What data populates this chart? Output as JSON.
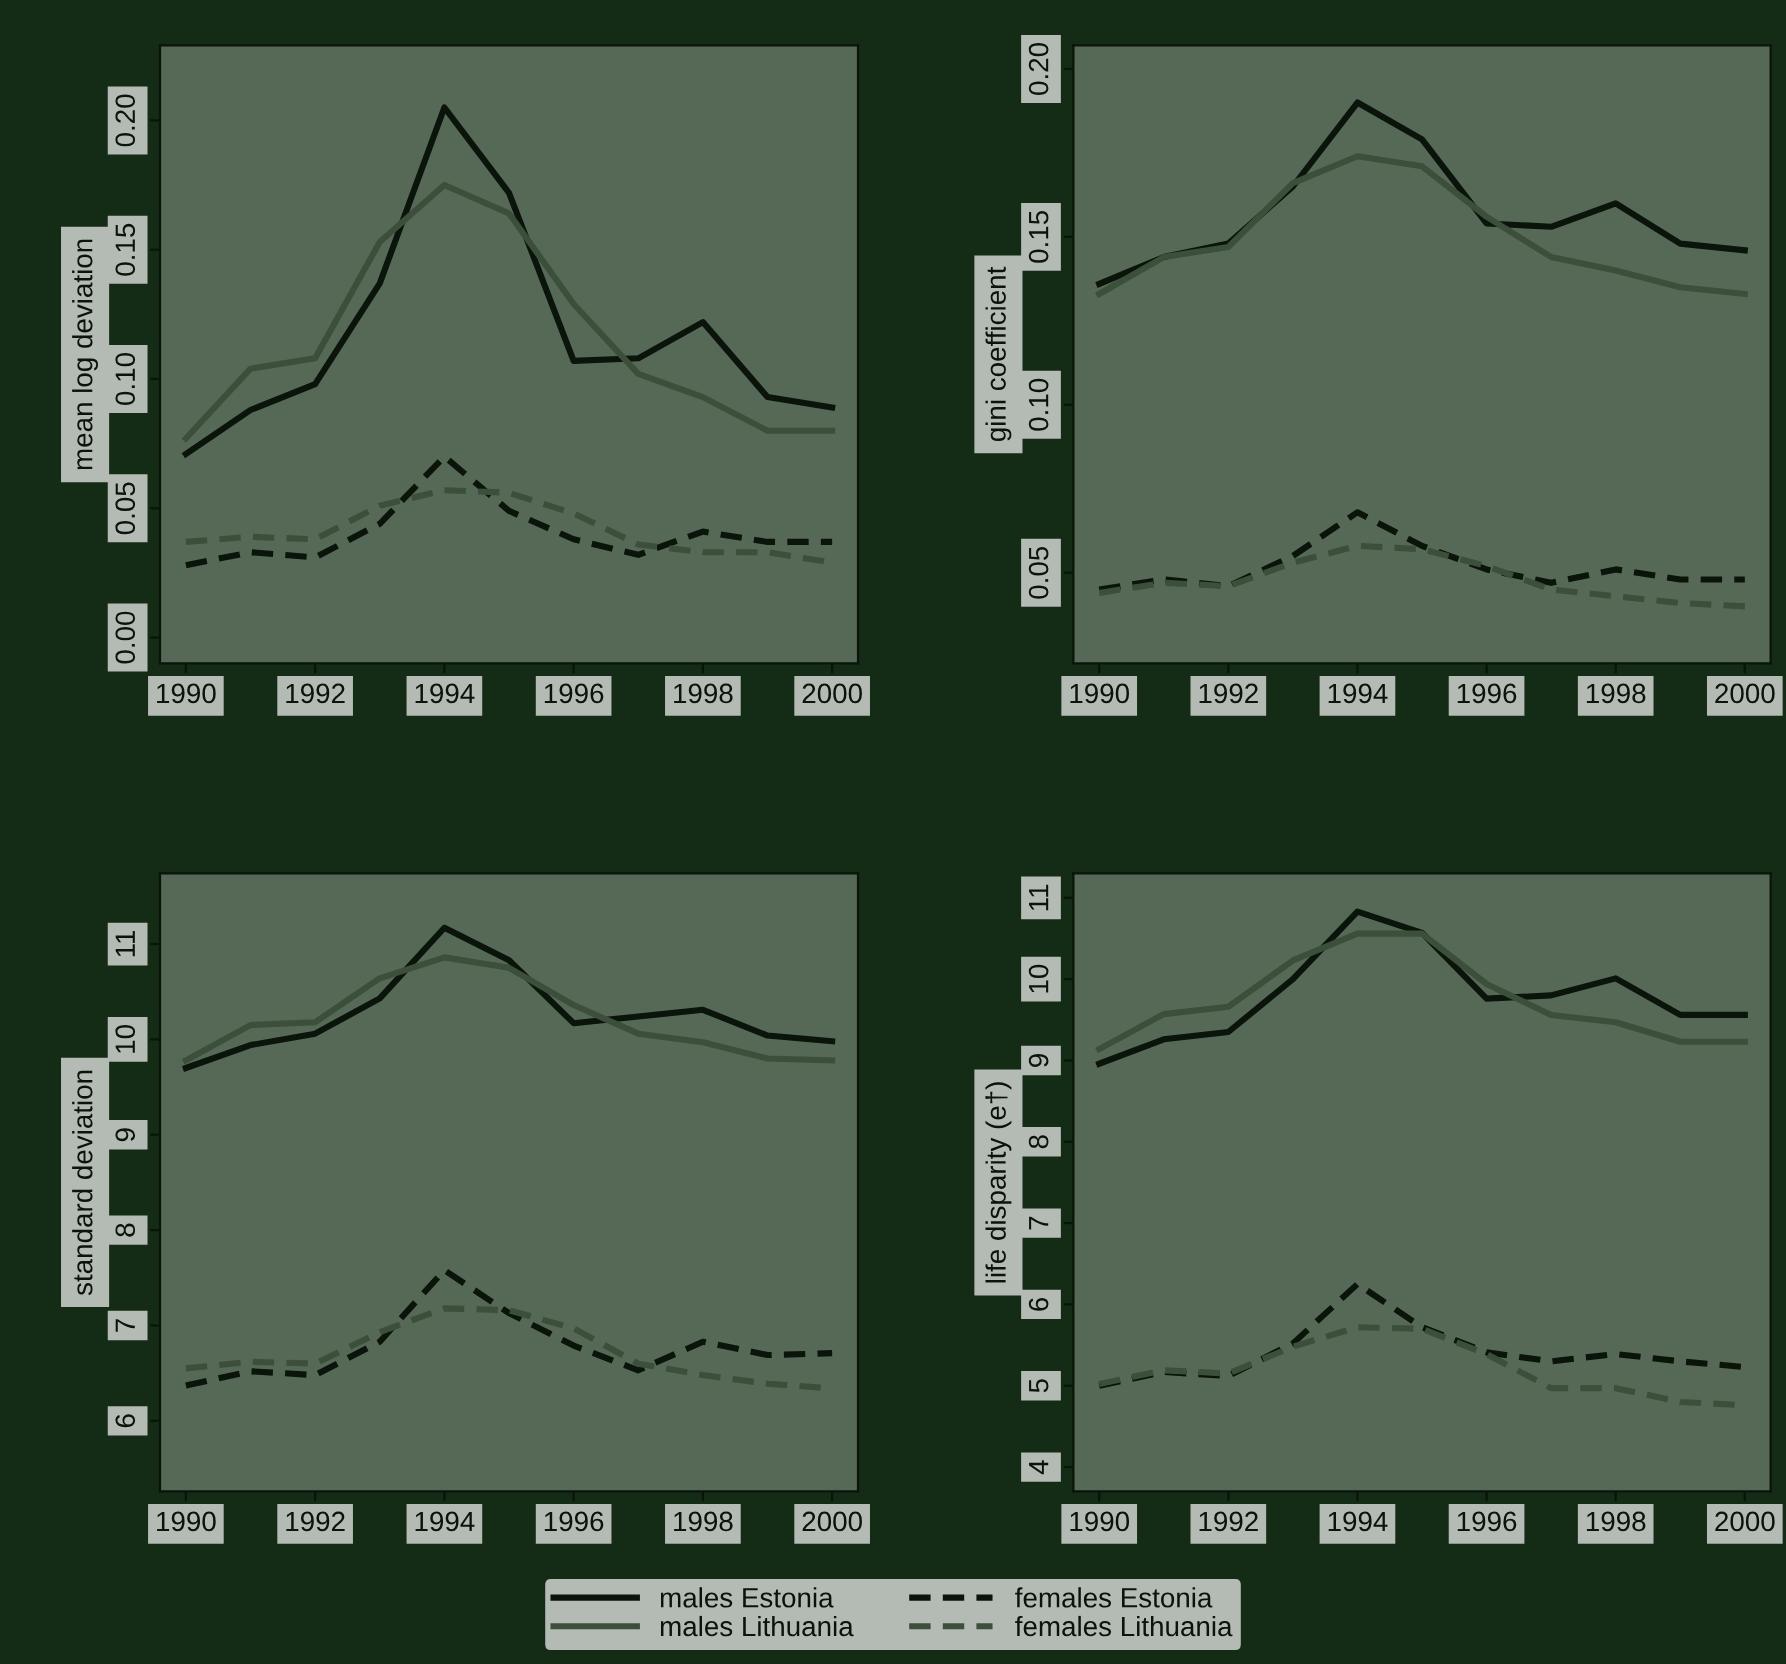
{
  "chart_data": [
    {
      "type": "line",
      "ylabel": "mean log deviation",
      "x": [
        1990,
        1991,
        1992,
        1993,
        1994,
        1995,
        1996,
        1997,
        1998,
        1999,
        2000
      ],
      "xlim": [
        1989.6,
        2000.4
      ],
      "xticks": [
        1990,
        1992,
        1994,
        1996,
        1998,
        2000
      ],
      "ylim": [
        -0.01,
        0.229
      ],
      "yticks": [
        {
          "value": 0,
          "label": "0.00"
        },
        {
          "value": 0.05,
          "label": "0.05"
        },
        {
          "value": 0.1,
          "label": "0.10"
        },
        {
          "value": 0.15,
          "label": "0.15"
        },
        {
          "value": 0.2,
          "label": "0.20"
        }
      ],
      "grid": false,
      "legend": "bottom",
      "series": [
        {
          "name": "males Estonia",
          "color": "#0a140a",
          "line_style": "solid",
          "values": [
            0.071,
            0.088,
            0.098,
            0.137,
            0.205,
            0.172,
            0.107,
            0.108,
            0.122,
            0.093,
            0.089
          ]
        },
        {
          "name": "males Lithuania",
          "color": "#3b4f3b",
          "line_style": "solid",
          "values": [
            0.077,
            0.104,
            0.108,
            0.153,
            0.175,
            0.164,
            0.129,
            0.102,
            0.093,
            0.08,
            0.08
          ]
        },
        {
          "name": "females Estonia",
          "color": "#0a140a",
          "line_style": "dashed",
          "values": [
            0.028,
            0.033,
            0.031,
            0.044,
            0.07,
            0.049,
            0.038,
            0.032,
            0.041,
            0.037,
            0.037
          ]
        },
        {
          "name": "females Lithuania",
          "color": "#3b4f3b",
          "line_style": "dashed",
          "values": [
            0.037,
            0.039,
            0.038,
            0.051,
            0.057,
            0.056,
            0.048,
            0.036,
            0.033,
            0.033,
            0.029
          ]
        }
      ]
    },
    {
      "type": "line",
      "ylabel": "gini coefficient",
      "x": [
        1990,
        1991,
        1992,
        1993,
        1994,
        1995,
        1996,
        1997,
        1998,
        1999,
        2000
      ],
      "xlim": [
        1989.6,
        2000.4
      ],
      "xticks": [
        1990,
        1992,
        1994,
        1996,
        1998,
        2000
      ],
      "ylim": [
        0.023,
        0.207
      ],
      "yticks": [
        0.05,
        {
          "value": 0.1,
          "label": "0.10"
        },
        0.15,
        {
          "value": 0.2,
          "label": "0.20"
        }
      ],
      "grid": false,
      "legend": false,
      "series": [
        {
          "color": "#0a140a",
          "line_style": "solid",
          "values": [
            0.136,
            0.144,
            0.148,
            0.165,
            0.19,
            0.179,
            0.154,
            0.153,
            0.16,
            0.148,
            0.146
          ]
        },
        {
          "color": "#3b4f3b",
          "line_style": "solid",
          "values": [
            0.133,
            0.144,
            0.147,
            0.166,
            0.174,
            0.171,
            0.156,
            0.144,
            0.14,
            0.135,
            0.133
          ]
        },
        {
          "color": "#0a140a",
          "line_style": "dashed",
          "values": [
            0.045,
            0.048,
            0.046,
            0.055,
            0.068,
            0.058,
            0.051,
            0.047,
            0.051,
            0.048,
            0.048
          ]
        },
        {
          "color": "#3b4f3b",
          "line_style": "dashed",
          "values": [
            0.044,
            0.047,
            0.046,
            0.053,
            0.058,
            0.057,
            0.052,
            0.045,
            0.043,
            0.041,
            0.04
          ]
        }
      ]
    },
    {
      "type": "line",
      "ylabel": "standard deviation",
      "x": [
        1990,
        1991,
        1992,
        1993,
        1994,
        1995,
        1996,
        1997,
        1998,
        1999,
        2000
      ],
      "xlim": [
        1989.6,
        2000.4
      ],
      "xticks": [
        1990,
        1992,
        1994,
        1996,
        1998,
        2000
      ],
      "ylim": [
        5.26,
        11.74
      ],
      "yticks": [
        6,
        7,
        8,
        9,
        10,
        11
      ],
      "grid": false,
      "legend": false,
      "series": [
        {
          "color": "#0a140a",
          "line_style": "solid",
          "values": [
            9.7,
            9.94,
            10.06,
            10.43,
            11.17,
            10.83,
            10.17,
            10.24,
            10.31,
            10.04,
            9.98
          ]
        },
        {
          "color": "#3b4f3b",
          "line_style": "solid",
          "values": [
            9.78,
            10.15,
            10.18,
            10.64,
            10.86,
            10.75,
            10.36,
            10.06,
            9.97,
            9.8,
            9.78
          ]
        },
        {
          "color": "#0a140a",
          "line_style": "dashed",
          "values": [
            6.37,
            6.52,
            6.48,
            6.83,
            7.58,
            7.13,
            6.79,
            6.53,
            6.83,
            6.69,
            6.71
          ]
        },
        {
          "color": "#3b4f3b",
          "line_style": "dashed",
          "values": [
            6.55,
            6.62,
            6.6,
            6.93,
            7.18,
            7.16,
            6.97,
            6.6,
            6.48,
            6.39,
            6.34
          ]
        }
      ]
    },
    {
      "type": "line",
      "ylabel": "life disparity (e†)",
      "x": [
        1990,
        1991,
        1992,
        1993,
        1994,
        1995,
        1996,
        1997,
        1998,
        1999,
        2000
      ],
      "xlim": [
        1989.6,
        2000.4
      ],
      "xticks": [
        1990,
        1992,
        1994,
        1996,
        1998,
        2000
      ],
      "ylim": [
        3.7,
        11.3
      ],
      "yticks": [
        4,
        5,
        6,
        7,
        8,
        9,
        10,
        11
      ],
      "grid": false,
      "legend": false,
      "series": [
        {
          "color": "#0a140a",
          "line_style": "solid",
          "values": [
            8.96,
            9.26,
            9.35,
            10.0,
            10.83,
            10.57,
            9.76,
            9.8,
            10.01,
            9.56,
            9.56
          ]
        },
        {
          "color": "#3b4f3b",
          "line_style": "solid",
          "values": [
            9.14,
            9.57,
            9.66,
            10.23,
            10.56,
            10.56,
            9.94,
            9.56,
            9.47,
            9.23,
            9.23
          ]
        },
        {
          "color": "#0a140a",
          "line_style": "dashed",
          "values": [
            5.0,
            5.17,
            5.12,
            5.52,
            6.25,
            5.72,
            5.41,
            5.3,
            5.39,
            5.3,
            5.23
          ]
        },
        {
          "color": "#3b4f3b",
          "line_style": "dashed",
          "values": [
            5.02,
            5.19,
            5.15,
            5.48,
            5.72,
            5.7,
            5.39,
            4.97,
            4.97,
            4.8,
            4.76
          ]
        }
      ]
    }
  ]
}
